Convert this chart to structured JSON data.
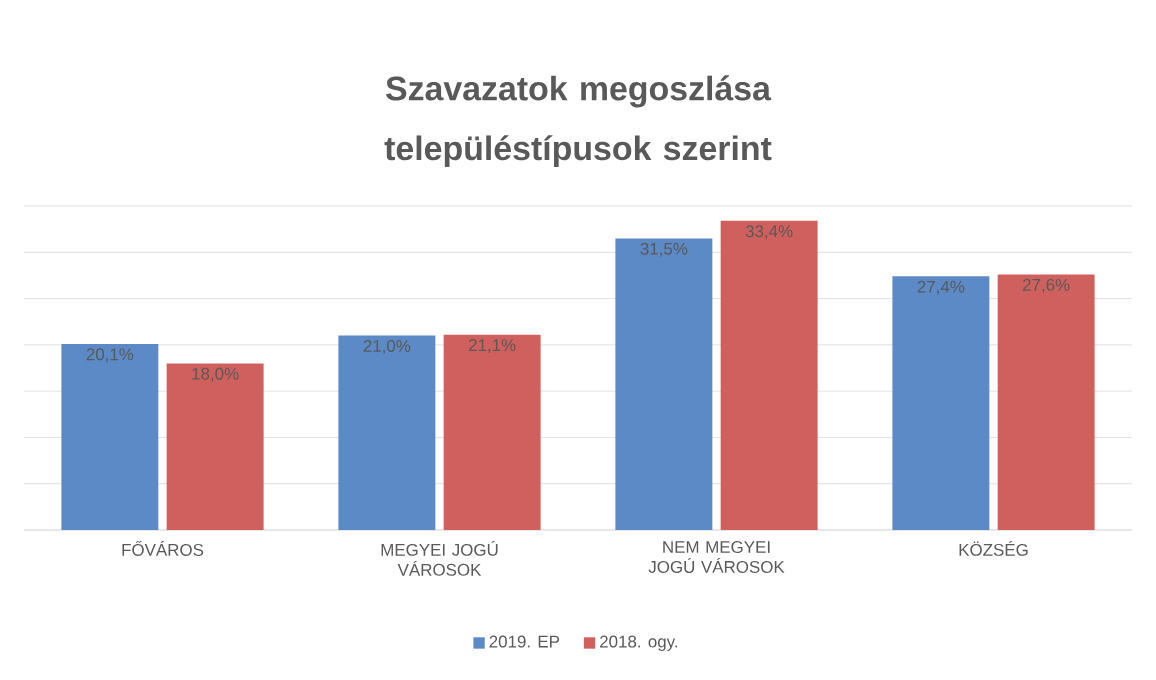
{
  "chart_data": {
    "type": "bar",
    "title": "Szavazatok megoszlása településtípusok szerint",
    "categories": [
      "FŐVÁROS",
      "MEGYEI JOGÚ VÁROSOK",
      "NEM MEGYEI JOGÚ VÁROSOK",
      "KÖZSÉG"
    ],
    "series": [
      {
        "name": "2019. EP",
        "color": "#5b8ac6",
        "values": [
          20.1,
          21.0,
          31.5,
          27.4
        ],
        "value_labels": [
          "20,1%",
          "21,0%",
          "31,5%",
          "27,4%"
        ]
      },
      {
        "name": "2018. ogy.",
        "color": "#d0605e",
        "values": [
          18.0,
          21.1,
          33.4,
          27.6
        ],
        "value_labels": [
          "18,0%",
          "21,1%",
          "33,4%",
          "27,6%"
        ]
      }
    ],
    "ylim": [
      0,
      35
    ],
    "yticks": [
      {
        "value": 0,
        "label": null
      },
      {
        "value": 5,
        "label": null
      },
      {
        "value": 10,
        "label": null
      },
      {
        "value": 15,
        "label": null
      },
      {
        "value": 20,
        "label": null
      },
      {
        "value": 25,
        "label": null
      },
      {
        "value": 30,
        "label": null
      },
      {
        "value": 35,
        "label": null
      }
    ],
    "grid": "y",
    "legend": "bottom",
    "tick_labels": "x"
  }
}
